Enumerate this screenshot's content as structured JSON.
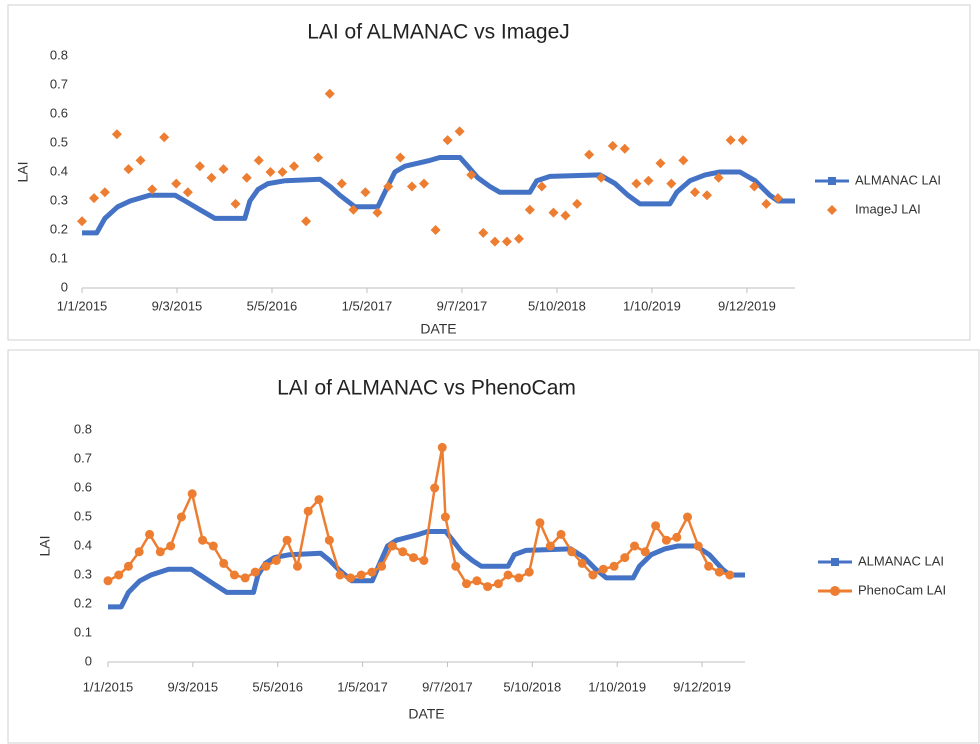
{
  "chart_data": [
    {
      "type": "line",
      "title": "LAI of ALMANAC vs ImageJ",
      "x_label": "DATE",
      "y_label": "LAI",
      "xlim": [
        "1/1/2015",
        "1/14/2020"
      ],
      "xticks": [
        "1/1/2015",
        "9/3/2015",
        "5/5/2016",
        "1/5/2017",
        "9/7/2017",
        "5/10/2018",
        "1/10/2019",
        "9/12/2019"
      ],
      "ylim": [
        0,
        0.8
      ],
      "yticks": [
        0,
        0.1,
        0.2,
        0.3,
        0.4,
        0.5,
        0.6,
        0.7,
        0.8
      ],
      "grid": false,
      "legend": "right",
      "series": [
        {
          "name": "ALMANAC LAI",
          "color": "#4472c4",
          "mode": "line",
          "x": [
            "1/1/2015",
            "2/8/2015",
            "3/1/2015",
            "4/3/2015",
            "5/5/2015",
            "6/25/2015",
            "8/29/2015",
            "9/24/2015",
            "11/1/2015",
            "12/10/2015",
            "2/25/2016",
            "3/9/2016",
            "3/30/2016",
            "4/25/2016",
            "6/8/2016",
            "9/6/2016",
            "10/2/2016",
            "10/27/2016",
            "12/5/2016",
            "2/2/2017",
            "2/20/2017",
            "3/18/2017",
            "4/13/2017",
            "6/16/2017",
            "7/12/2017",
            "9/2/2017",
            "9/22/2017",
            "10/18/2017",
            "11/18/2017",
            "12/14/2017",
            "3/1/2018",
            "3/19/2018",
            "4/22/2018",
            "8/29/2018",
            "10/7/2018",
            "11/9/2018",
            "12/10/2018",
            "2/25/2019",
            "3/15/2019",
            "4/18/2019",
            "5/27/2019",
            "7/4/2019",
            "8/25/2019",
            "10/3/2019",
            "11/10/2019",
            "12/1/2019",
            "1/14/2020"
          ],
          "values": [
            0.19,
            0.19,
            0.24,
            0.28,
            0.3,
            0.32,
            0.32,
            0.3,
            0.27,
            0.24,
            0.24,
            0.3,
            0.34,
            0.36,
            0.37,
            0.375,
            0.35,
            0.32,
            0.28,
            0.28,
            0.33,
            0.4,
            0.42,
            0.44,
            0.45,
            0.45,
            0.42,
            0.38,
            0.35,
            0.33,
            0.33,
            0.37,
            0.385,
            0.39,
            0.36,
            0.32,
            0.29,
            0.29,
            0.33,
            0.37,
            0.39,
            0.4,
            0.4,
            0.37,
            0.32,
            0.3,
            0.3
          ]
        },
        {
          "name": "ImageJ LAI",
          "color": "#ed7d31",
          "mode": "markers",
          "x": [
            "1/1/2015",
            "2/1/2015",
            "3/1/2015",
            "4/1/2015",
            "5/1/2015",
            "6/1/2015",
            "7/1/2015",
            "8/1/2015",
            "9/1/2015",
            "10/1/2015",
            "11/1/2015",
            "12/1/2015",
            "1/1/2016",
            "2/1/2016",
            "3/1/2016",
            "4/1/2016",
            "5/1/2016",
            "6/1/2016",
            "7/1/2016",
            "8/1/2016",
            "9/1/2016",
            "10/1/2016",
            "11/1/2016",
            "12/1/2016",
            "1/1/2017",
            "2/1/2017",
            "3/1/2017",
            "4/1/2017",
            "5/1/2017",
            "6/1/2017",
            "7/1/2017",
            "8/1/2017",
            "9/1/2017",
            "10/1/2017",
            "11/1/2017",
            "12/1/2017",
            "1/1/2018",
            "2/1/2018",
            "3/1/2018",
            "4/1/2018",
            "5/1/2018",
            "6/1/2018",
            "7/1/2018",
            "8/1/2018",
            "9/1/2018",
            "10/1/2018",
            "11/1/2018",
            "12/1/2018",
            "1/1/2019",
            "2/1/2019",
            "3/1/2019",
            "4/1/2019",
            "5/1/2019",
            "6/1/2019",
            "7/1/2019",
            "8/1/2019",
            "9/1/2019",
            "10/1/2019",
            "11/1/2019",
            "12/1/2019"
          ],
          "values": [
            0.23,
            0.31,
            0.33,
            0.53,
            0.41,
            0.44,
            0.34,
            0.52,
            0.36,
            0.33,
            0.42,
            0.38,
            0.41,
            0.29,
            0.38,
            0.44,
            0.4,
            0.4,
            0.42,
            0.23,
            0.45,
            0.67,
            0.36,
            0.27,
            0.33,
            0.26,
            0.35,
            0.45,
            0.35,
            0.36,
            0.2,
            0.51,
            0.54,
            0.39,
            0.19,
            0.16,
            0.16,
            0.17,
            0.27,
            0.35,
            0.26,
            0.25,
            0.29,
            0.46,
            0.38,
            0.49,
            0.48,
            0.36,
            0.37,
            0.43,
            0.36,
            0.44,
            0.33,
            0.32,
            0.38,
            0.51,
            0.51,
            0.35,
            0.29,
            0.31
          ]
        }
      ]
    },
    {
      "type": "line",
      "title": "LAI of ALMANAC vs PhenoCam",
      "x_label": "DATE",
      "y_label": "LAI",
      "xlim": [
        "1/1/2015",
        "1/14/2020"
      ],
      "xticks": [
        "1/1/2015",
        "9/3/2015",
        "5/5/2016",
        "1/5/2017",
        "9/7/2017",
        "5/10/2018",
        "1/10/2019",
        "9/12/2019"
      ],
      "ylim": [
        0,
        0.8
      ],
      "yticks": [
        0,
        0.1,
        0.2,
        0.3,
        0.4,
        0.5,
        0.6,
        0.7,
        0.8
      ],
      "grid": false,
      "legend": "right",
      "series": [
        {
          "name": "ALMANAC LAI",
          "color": "#4472c4",
          "mode": "line",
          "x": [
            "1/1/2015",
            "2/8/2015",
            "3/1/2015",
            "4/3/2015",
            "5/5/2015",
            "6/25/2015",
            "8/29/2015",
            "9/24/2015",
            "11/1/2015",
            "12/10/2015",
            "2/25/2016",
            "3/9/2016",
            "3/30/2016",
            "4/25/2016",
            "6/8/2016",
            "9/6/2016",
            "10/2/2016",
            "10/27/2016",
            "12/5/2016",
            "2/2/2017",
            "2/20/2017",
            "3/18/2017",
            "4/13/2017",
            "6/16/2017",
            "7/12/2017",
            "9/2/2017",
            "9/22/2017",
            "10/18/2017",
            "11/18/2017",
            "12/14/2017",
            "3/1/2018",
            "3/19/2018",
            "4/22/2018",
            "8/29/2018",
            "10/7/2018",
            "11/9/2018",
            "12/10/2018",
            "2/25/2019",
            "3/15/2019",
            "4/18/2019",
            "5/27/2019",
            "7/4/2019",
            "8/25/2019",
            "10/3/2019",
            "11/10/2019",
            "12/1/2019",
            "1/14/2020"
          ],
          "values": [
            0.19,
            0.19,
            0.24,
            0.28,
            0.3,
            0.32,
            0.32,
            0.3,
            0.27,
            0.24,
            0.24,
            0.3,
            0.34,
            0.36,
            0.37,
            0.375,
            0.35,
            0.32,
            0.28,
            0.28,
            0.33,
            0.4,
            0.42,
            0.44,
            0.45,
            0.45,
            0.42,
            0.38,
            0.35,
            0.33,
            0.33,
            0.37,
            0.385,
            0.39,
            0.36,
            0.32,
            0.29,
            0.29,
            0.33,
            0.37,
            0.39,
            0.4,
            0.4,
            0.37,
            0.32,
            0.3,
            0.3
          ]
        },
        {
          "name": "PhenoCam LAI",
          "color": "#ed7d31",
          "mode": "line-markers",
          "x": [
            "1/1/2015",
            "2/1/2015",
            "3/1/2015",
            "4/1/2015",
            "5/1/2015",
            "6/1/2015",
            "7/1/2015",
            "8/1/2015",
            "9/1/2015",
            "10/1/2015",
            "11/1/2015",
            "12/1/2015",
            "1/1/2016",
            "2/1/2016",
            "3/1/2016",
            "4/1/2016",
            "5/1/2016",
            "6/1/2016",
            "7/1/2016",
            "8/1/2016",
            "9/1/2016",
            "10/1/2016",
            "11/1/2016",
            "12/1/2016",
            "1/1/2017",
            "2/1/2017",
            "3/1/2017",
            "4/1/2017",
            "5/1/2017",
            "6/1/2017",
            "7/1/2017",
            "8/1/2017",
            "8/23/2017",
            "9/1/2017",
            "10/1/2017",
            "11/1/2017",
            "12/1/2017",
            "1/1/2018",
            "2/1/2018",
            "3/1/2018",
            "4/1/2018",
            "5/1/2018",
            "6/1/2018",
            "7/1/2018",
            "8/1/2018",
            "9/1/2018",
            "10/1/2018",
            "11/1/2018",
            "12/1/2018",
            "1/1/2019",
            "2/1/2019",
            "3/1/2019",
            "4/1/2019",
            "5/1/2019",
            "6/1/2019",
            "7/1/2019",
            "8/1/2019",
            "9/1/2019",
            "10/1/2019",
            "11/1/2019",
            "12/1/2019"
          ],
          "values": [
            0.28,
            0.3,
            0.33,
            0.38,
            0.44,
            0.38,
            0.4,
            0.5,
            0.58,
            0.42,
            0.4,
            0.34,
            0.3,
            0.29,
            0.31,
            0.33,
            0.35,
            0.42,
            0.33,
            0.52,
            0.56,
            0.42,
            0.3,
            0.29,
            0.3,
            0.31,
            0.33,
            0.4,
            0.38,
            0.36,
            0.35,
            0.6,
            0.74,
            0.5,
            0.33,
            0.27,
            0.28,
            0.26,
            0.27,
            0.3,
            0.29,
            0.31,
            0.48,
            0.4,
            0.44,
            0.38,
            0.34,
            0.3,
            0.32,
            0.33,
            0.36,
            0.4,
            0.38,
            0.47,
            0.42,
            0.43,
            0.5,
            0.4,
            0.33,
            0.31,
            0.3
          ]
        }
      ]
    }
  ]
}
